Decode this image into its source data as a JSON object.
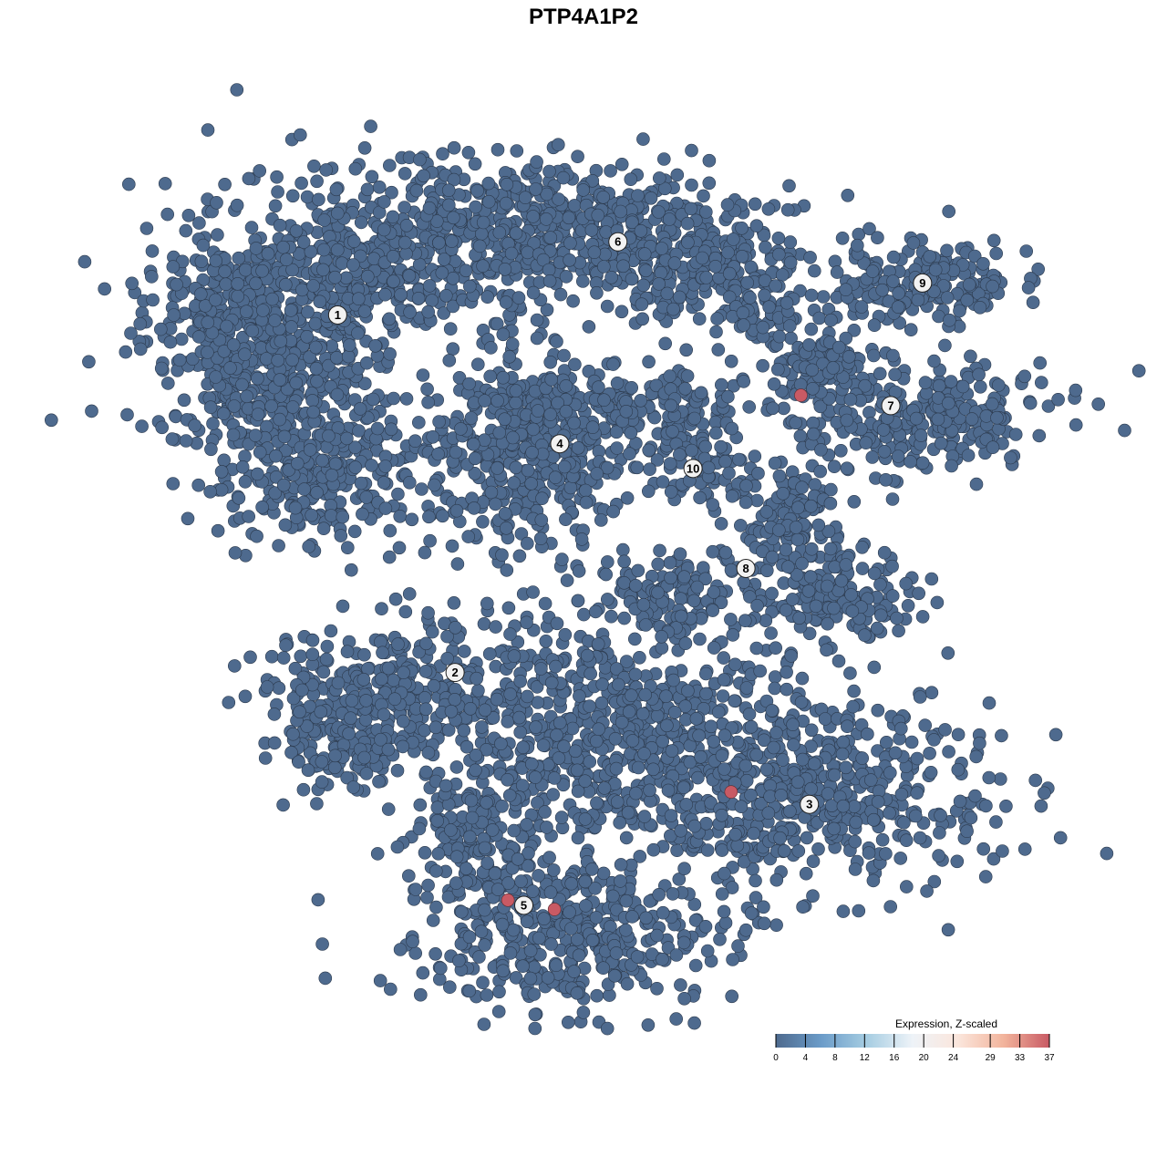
{
  "chart_data": {
    "type": "scatter",
    "title": "PTP4A1P2",
    "xlabel": "",
    "ylabel": "",
    "xlim": [
      -40,
      40
    ],
    "ylim": [
      -40,
      40
    ],
    "grid": false,
    "point_color_default": "#4e6a8e",
    "clusters": [
      {
        "label": "1",
        "x": -25.4,
        "y": 25.8
      },
      {
        "label": "6",
        "x": 1.1,
        "y": 32.9
      },
      {
        "label": "9",
        "x": 29.9,
        "y": 28.9
      },
      {
        "label": "7",
        "x": 26.9,
        "y": 17.0
      },
      {
        "label": "4",
        "x": -4.4,
        "y": 13.3
      },
      {
        "label": "10",
        "x": 8.2,
        "y": 10.9
      },
      {
        "label": "8",
        "x": 13.2,
        "y": 1.2
      },
      {
        "label": "2",
        "x": -14.3,
        "y": -8.9
      },
      {
        "label": "3",
        "x": 19.2,
        "y": -21.7
      },
      {
        "label": "5",
        "x": -7.8,
        "y": -31.5
      }
    ],
    "high_expression_points": [
      {
        "x": 18.4,
        "y": 18.0,
        "value": 37
      },
      {
        "x": 11.8,
        "y": -20.5,
        "value": 37
      },
      {
        "x": -9.3,
        "y": -31.0,
        "value": 37
      },
      {
        "x": -4.9,
        "y": -31.9,
        "value": 37
      }
    ],
    "colorbar": {
      "title": "Expression, Z-scaled",
      "ticks": [
        "0",
        "4",
        "8",
        "12",
        "16",
        "20",
        "24",
        "29",
        "33",
        "37"
      ],
      "tick_values": [
        0,
        4,
        8,
        12,
        16,
        20,
        24,
        29,
        33,
        37
      ],
      "range": [
        0,
        37
      ],
      "colors": [
        "#4e6a8e",
        "#6b9cc9",
        "#a6cde2",
        "#eef3f8",
        "#fbe6dc",
        "#f2b49c",
        "#c85a64"
      ],
      "placement": "bottom-right"
    }
  }
}
